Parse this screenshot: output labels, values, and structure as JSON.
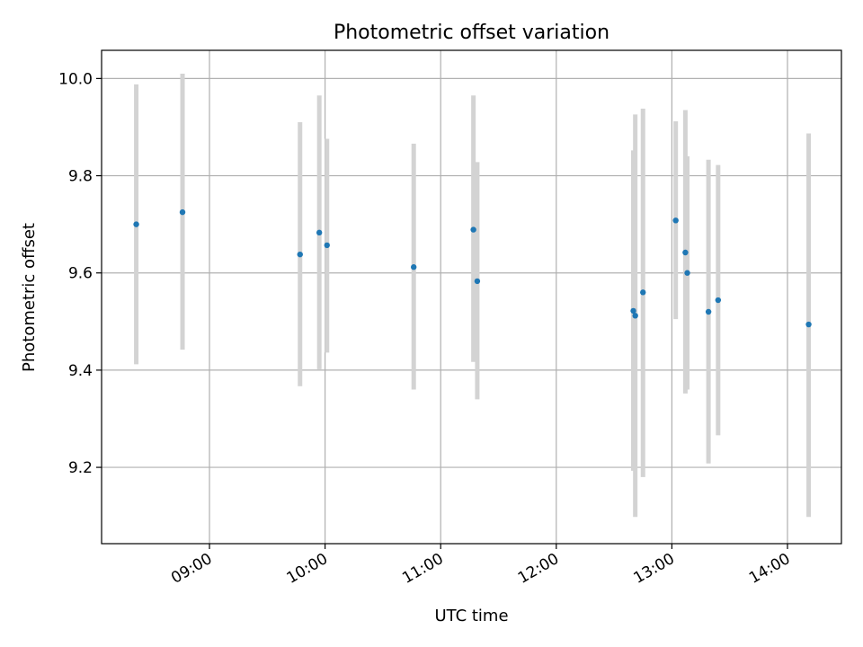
{
  "chart_data": {
    "type": "scatter",
    "title": "Photometric offset variation",
    "xlabel": "UTC time",
    "ylabel": "Photometric offset",
    "x_ticks": [
      "09:00",
      "10:00",
      "11:00",
      "12:00",
      "13:00",
      "14:00"
    ],
    "y_ticks": [
      "9.2",
      "9.4",
      "9.6",
      "9.8",
      "10.0"
    ],
    "xlim": [
      "08:04",
      "14:28"
    ],
    "ylim": [
      9.043,
      10.058
    ],
    "grid": true,
    "marker_color": "#1f77b4",
    "errorbar_color": "#d3d3d3",
    "points": [
      {
        "x": "08:22",
        "y": 9.7,
        "ylow": 9.412,
        "yhigh": 9.988
      },
      {
        "x": "08:46",
        "y": 9.725,
        "ylow": 9.442,
        "yhigh": 10.01
      },
      {
        "x": "09:47",
        "y": 9.638,
        "ylow": 9.367,
        "yhigh": 9.91
      },
      {
        "x": "09:57",
        "y": 9.683,
        "ylow": 9.402,
        "yhigh": 9.965
      },
      {
        "x": "10:01",
        "y": 9.657,
        "ylow": 9.436,
        "yhigh": 9.876
      },
      {
        "x": "10:46",
        "y": 9.612,
        "ylow": 9.36,
        "yhigh": 9.866
      },
      {
        "x": "11:17",
        "y": 9.689,
        "ylow": 9.417,
        "yhigh": 9.965
      },
      {
        "x": "11:19",
        "y": 9.583,
        "ylow": 9.34,
        "yhigh": 9.828
      },
      {
        "x": "12:40",
        "y": 9.522,
        "ylow": 9.193,
        "yhigh": 9.852
      },
      {
        "x": "12:41",
        "y": 9.512,
        "ylow": 9.098,
        "yhigh": 9.926
      },
      {
        "x": "12:45",
        "y": 9.56,
        "ylow": 9.18,
        "yhigh": 9.938
      },
      {
        "x": "13:02",
        "y": 9.708,
        "ylow": 9.505,
        "yhigh": 9.912
      },
      {
        "x": "13:07",
        "y": 9.642,
        "ylow": 9.352,
        "yhigh": 9.935
      },
      {
        "x": "13:08",
        "y": 9.6,
        "ylow": 9.36,
        "yhigh": 9.84
      },
      {
        "x": "13:19",
        "y": 9.52,
        "ylow": 9.208,
        "yhigh": 9.833
      },
      {
        "x": "13:24",
        "y": 9.544,
        "ylow": 9.266,
        "yhigh": 9.822
      },
      {
        "x": "14:11",
        "y": 9.494,
        "ylow": 9.098,
        "yhigh": 9.887
      }
    ]
  }
}
